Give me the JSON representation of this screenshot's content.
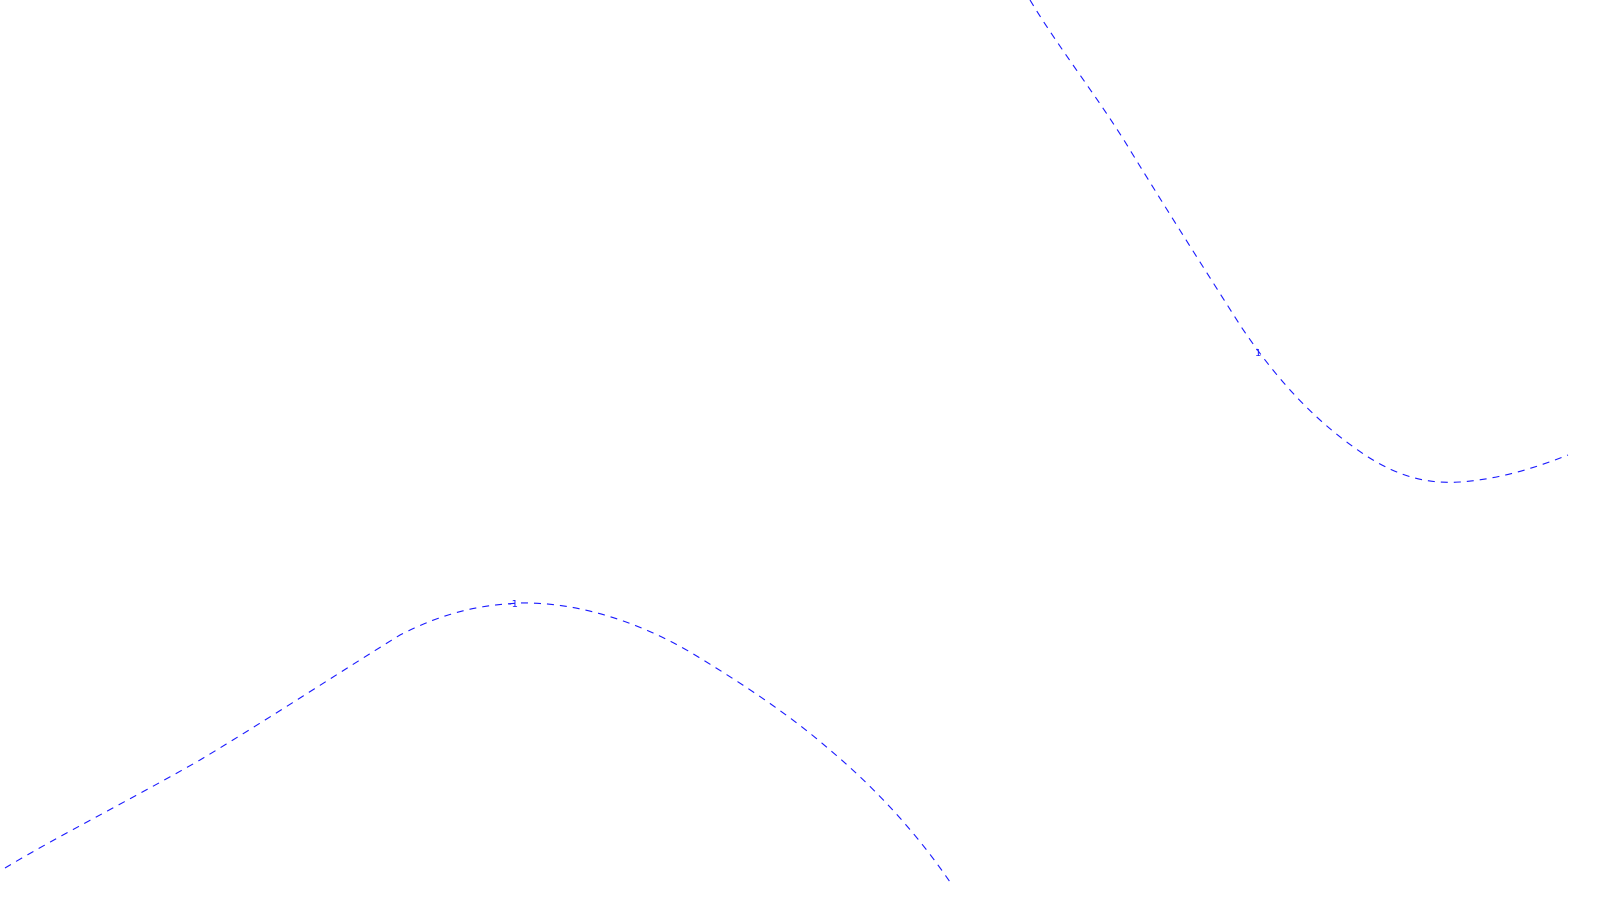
{
  "colors": {
    "background": "#ffffff",
    "contour": "#1a1aff"
  },
  "contours": [
    {
      "id": "upper-right",
      "label": "1"
    },
    {
      "id": "lower-left",
      "label": "-1"
    }
  ]
}
